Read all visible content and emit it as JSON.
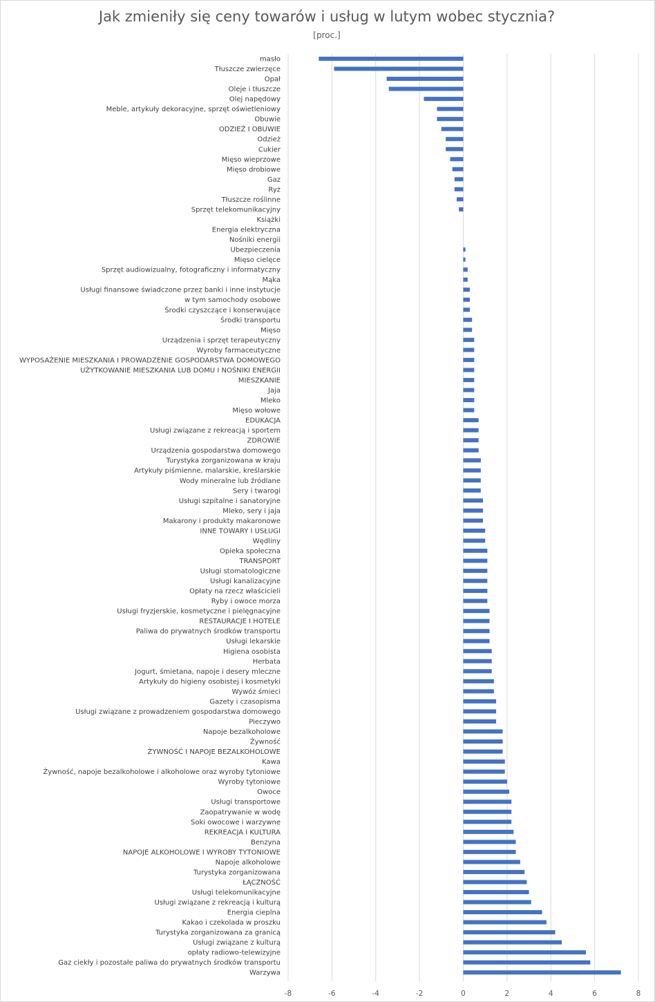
{
  "chart_data": {
    "type": "bar",
    "orientation": "horizontal",
    "title": "Jak zmieniły się ceny towarów i usług w lutym wobec stycznia?",
    "subtitle": "[proc.]",
    "xlim": [
      -8,
      8
    ],
    "xticks": [
      -8,
      -6,
      -4,
      -2,
      0,
      2,
      4,
      6,
      8
    ],
    "grid": true,
    "bar_color": "#4472c4",
    "categories": [
      "masło",
      "Tłuszcze zwierzęce",
      "Opał",
      "Oleje i tłuszcze",
      "Olej napędowy",
      "Meble, artykuły dekoracyjne, sprzęt oświetleniowy",
      "Obuwie",
      "ODZIEŻ I OBUWIE",
      "Odzież",
      "Cukier",
      "Mięso wieprzowe",
      "Mięso drobiowe",
      "Gaz",
      "Ryż",
      "Tłuszcze roślinne",
      "Sprzęt telekomunikacyjny",
      "Książki",
      "Energia elektryczna",
      "Nośniki energii",
      "Ubezpieczenia",
      "Mięso cielęce",
      "Sprzęt audiowizualny, fotograficzny i informatyczny",
      "Mąka",
      "Usługi finansowe świadczone przez banki i inne instytucje",
      "w tym samochody osobowe",
      "Środki czyszczące i konserwujące",
      "Środki transportu",
      "Mięso",
      "Urządzenia i sprzęt terapeutyczny",
      "Wyroby farmaceutyczne",
      "WYPOSAŻENIE MIESZKANIA I PROWADZENIE GOSPODARSTWA DOMOWEGO",
      "UŻYTKOWANIE MIESZKANIA LUB DOMU I NOŚNIKI ENERGII",
      "MIESZKANIE",
      "Jaja",
      "Mleko",
      "Mięso wołowe",
      "EDUKACJA",
      "Usługi związane z rekreacją i sportem",
      "ZDROWIE",
      "Urządzenia gospodarstwa domowego",
      "Turystyka zorganizowana w kraju",
      "Artykuły piśmienne, malarskie, kreślarskie",
      "Wody mineralne lub źródlane",
      "Sery i twarogi",
      "Usługi szpitalne i sanatoryjne",
      "Mleko, sery i jaja",
      "Makarony i produkty makaronowe",
      "INNE TOWARY I USŁUGI",
      "Wędliny",
      "Opieka społeczna",
      "TRANSPORT",
      "Usługi stomatologiczne",
      "Usługi kanalizacyjne",
      "Opłaty na rzecz właścicieli",
      "Ryby i owoce morza",
      "Usługi fryzjerskie, kosmetyczne i pielęgnacyjne",
      "RESTAURACJE I HOTELE",
      "Paliwa do prywatnych środków transportu",
      "Usługi lekarskie",
      "Higiena osobista",
      "Herbata",
      "Jogurt, śmietana, napoje i desery mleczne",
      "Artykuły do higieny osobistej i kosmetyki",
      "Wywóz śmieci",
      "Gazety i czasopisma",
      "Usługi związane z prowadzeniem gospodarstwa domowego",
      "Pieczywo",
      "Napoje bezalkoholowe",
      "Żywność",
      "ŻYWNOŚĆ I NAPOJE BEZALKOHOLOWE",
      "Kawa",
      "Żywność, napoje bezalkoholowe i alkoholowe oraz wyroby tytoniowe",
      "Wyroby tytoniowe",
      "Owoce",
      "Usługi transportowe",
      "Zaopatrywanie w wodę",
      "Soki owocowe i warzywne",
      "REKREACJA I KULTURA",
      "Benzyna",
      "NAPOJE ALKOHOLOWE I WYROBY TYTONIOWE",
      "Napoje alkoholowe",
      "Turystyka zorganizowana",
      "ŁĄCZNOŚĆ",
      "Usługi telekomunikacyjne",
      "Usługi związane z rekreacją i kulturą",
      "Energia cieplna",
      "Kakao i czekolada w proszku",
      "Turystyka zorganizowana za granicą",
      "Usługi związane z kulturą",
      "opłaty radiowo-telewizyjne",
      "Gaz ciekły i pozostałe paliwa do prywatnych środków transportu",
      "Warzywa"
    ],
    "values": [
      -6.6,
      -5.9,
      -3.5,
      -3.4,
      -1.8,
      -1.2,
      -1.2,
      -1.0,
      -0.8,
      -0.8,
      -0.6,
      -0.5,
      -0.4,
      -0.4,
      -0.3,
      -0.2,
      0.0,
      0.0,
      0.0,
      0.1,
      0.1,
      0.2,
      0.2,
      0.3,
      0.3,
      0.3,
      0.4,
      0.4,
      0.5,
      0.5,
      0.5,
      0.5,
      0.5,
      0.5,
      0.5,
      0.5,
      0.7,
      0.7,
      0.7,
      0.7,
      0.8,
      0.8,
      0.8,
      0.8,
      0.9,
      0.9,
      0.9,
      1.0,
      1.0,
      1.1,
      1.1,
      1.1,
      1.1,
      1.1,
      1.1,
      1.2,
      1.2,
      1.2,
      1.2,
      1.3,
      1.3,
      1.3,
      1.4,
      1.4,
      1.5,
      1.5,
      1.5,
      1.8,
      1.8,
      1.8,
      1.9,
      1.9,
      2.0,
      2.1,
      2.2,
      2.2,
      2.2,
      2.3,
      2.4,
      2.4,
      2.6,
      2.8,
      2.9,
      3.0,
      3.1,
      3.6,
      3.8,
      4.2,
      4.5,
      5.6,
      5.8,
      7.2
    ]
  }
}
